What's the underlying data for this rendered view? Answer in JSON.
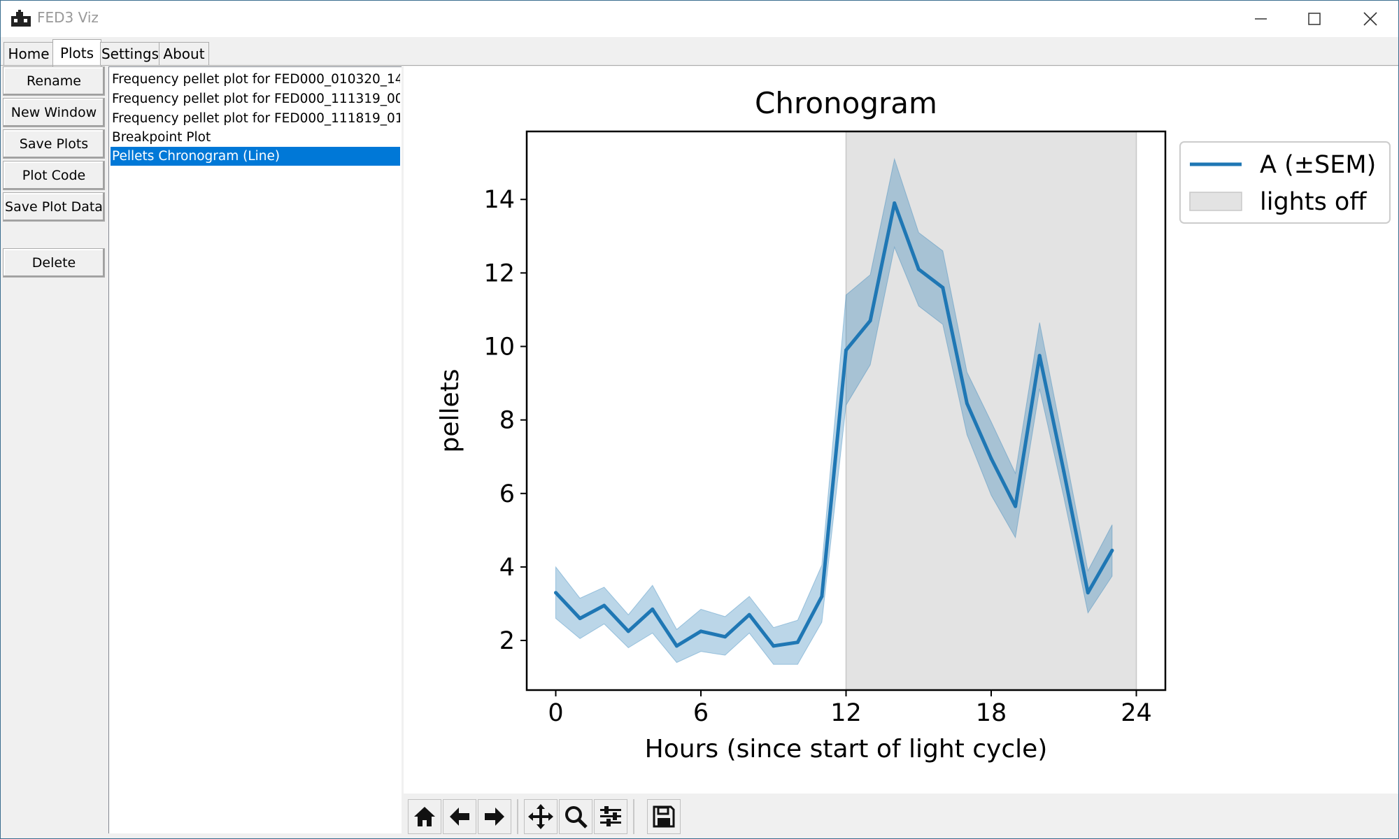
{
  "window": {
    "title": "FED3 Viz"
  },
  "tabs": [
    {
      "label": "Home"
    },
    {
      "label": "Plots"
    },
    {
      "label": "Settings"
    },
    {
      "label": "About"
    }
  ],
  "sidebar": {
    "buttons": [
      {
        "label": "Rename"
      },
      {
        "label": "New Window"
      },
      {
        "label": "Save Plots"
      },
      {
        "label": "Plot Code"
      },
      {
        "label": "Save Plot Data"
      },
      {
        "label": "Delete"
      }
    ]
  },
  "plot_list": {
    "items": [
      {
        "label": "Frequency pellet plot for FED000_010320_14"
      },
      {
        "label": "Frequency pellet plot for FED000_111319_00"
      },
      {
        "label": "Frequency pellet plot for FED000_111819_01"
      },
      {
        "label": "Breakpoint Plot"
      },
      {
        "label": "Pellets Chronogram (Line)"
      }
    ],
    "selected_index": 4
  },
  "chart_data": {
    "type": "line",
    "title": "Chronogram",
    "xlabel": "Hours (since start of light cycle)",
    "ylabel": "pellets",
    "xlim": [
      -1.2,
      25.2
    ],
    "ylim": [
      0.65,
      15.85
    ],
    "xticks": [
      0,
      6,
      12,
      18,
      24
    ],
    "yticks": [
      2,
      4,
      6,
      8,
      10,
      12,
      14
    ],
    "grid": false,
    "legend_position": "outside-right-top",
    "series": [
      {
        "name": "A (±SEM)",
        "color": "#1f77b4",
        "x": [
          0,
          1,
          2,
          3,
          4,
          5,
          6,
          7,
          8,
          9,
          10,
          11,
          12,
          13,
          14,
          15,
          16,
          17,
          18,
          19,
          20,
          21,
          22,
          23
        ],
        "values": [
          3.3,
          2.6,
          2.95,
          2.25,
          2.85,
          1.85,
          2.25,
          2.1,
          2.7,
          1.85,
          1.95,
          3.2,
          9.9,
          10.7,
          13.9,
          12.1,
          11.6,
          8.45,
          6.95,
          5.65,
          9.75,
          6.6,
          3.3,
          4.45
        ],
        "upper": [
          4.0,
          3.15,
          3.45,
          2.7,
          3.5,
          2.3,
          2.85,
          2.65,
          3.2,
          2.35,
          2.55,
          4.05,
          11.4,
          11.95,
          15.1,
          13.1,
          12.6,
          9.3,
          7.95,
          6.55,
          10.65,
          7.3,
          3.9,
          5.15
        ],
        "lower": [
          2.6,
          2.05,
          2.45,
          1.8,
          2.2,
          1.4,
          1.7,
          1.6,
          2.2,
          1.35,
          1.35,
          2.5,
          8.4,
          9.5,
          12.7,
          11.1,
          10.6,
          7.6,
          5.95,
          4.8,
          8.85,
          5.9,
          2.75,
          3.75
        ]
      }
    ],
    "shaded_region": {
      "name": "lights off",
      "x": [
        12,
        24
      ],
      "color": "#e3e3e3"
    }
  }
}
